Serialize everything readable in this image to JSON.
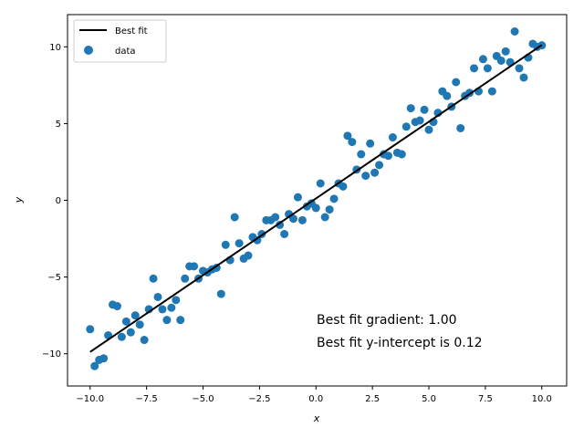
{
  "chart_data": {
    "type": "scatter",
    "title": "",
    "xlabel": "x",
    "ylabel": "y",
    "xlim": [
      -11,
      11.1
    ],
    "ylim": [
      -12.1,
      12.1
    ],
    "xticks": [
      -10,
      -7.5,
      -5,
      -2.5,
      0,
      2.5,
      5,
      7.5,
      10
    ],
    "xtick_labels": [
      "−10.0",
      "−7.5",
      "−5.0",
      "−2.5",
      "0.0",
      "2.5",
      "5.0",
      "7.5",
      "10.0"
    ],
    "yticks": [
      -10,
      -5,
      0,
      5,
      10
    ],
    "ytick_labels": [
      "−10",
      "−5",
      "0",
      "5",
      "10"
    ],
    "grid": false,
    "legend_position": "upper-left",
    "legend": [
      {
        "label": "Best fit",
        "kind": "line"
      },
      {
        "label": "data",
        "kind": "marker"
      }
    ],
    "fit_line": {
      "name": "Best fit",
      "gradient": 1.0,
      "intercept": 0.12,
      "x_range": [
        -10,
        10
      ],
      "color": "#000000"
    },
    "marker_color": "#1f77b4",
    "annotations": [
      "Best fit gradient: 1.00",
      "Best fit y-intercept is 0.12"
    ],
    "series": [
      {
        "name": "data",
        "x": [
          -10.0,
          -9.8,
          -9.6,
          -9.4,
          -9.2,
          -9.0,
          -8.8,
          -8.6,
          -8.4,
          -8.2,
          -8.0,
          -7.8,
          -7.6,
          -7.4,
          -7.2,
          -7.0,
          -6.8,
          -6.6,
          -6.4,
          -6.2,
          -6.0,
          -5.8,
          -5.6,
          -5.4,
          -5.2,
          -5.0,
          -4.8,
          -4.6,
          -4.4,
          -4.2,
          -4.0,
          -3.8,
          -3.6,
          -3.4,
          -3.2,
          -3.0,
          -2.8,
          -2.6,
          -2.4,
          -2.2,
          -2.0,
          -1.8,
          -1.6,
          -1.4,
          -1.2,
          -1.0,
          -0.8,
          -0.6,
          -0.4,
          -0.2,
          0.0,
          0.2,
          0.4,
          0.6,
          0.8,
          1.0,
          1.2,
          1.4,
          1.6,
          1.8,
          2.0,
          2.2,
          2.4,
          2.6,
          2.8,
          3.0,
          3.2,
          3.4,
          3.6,
          3.8,
          4.0,
          4.2,
          4.4,
          4.6,
          4.8,
          5.0,
          5.2,
          5.4,
          5.6,
          5.8,
          6.0,
          6.2,
          6.4,
          6.6,
          6.8,
          7.0,
          7.2,
          7.4,
          7.6,
          7.8,
          8.0,
          8.2,
          8.4,
          8.6,
          8.8,
          9.0,
          9.2,
          9.4,
          9.6,
          9.8,
          10.0
        ],
        "y": [
          -8.4,
          -10.8,
          -10.4,
          -10.3,
          -8.8,
          -6.8,
          -6.9,
          -8.9,
          -7.9,
          -8.6,
          -7.5,
          -8.1,
          -9.1,
          -7.1,
          -5.1,
          -6.3,
          -7.1,
          -7.8,
          -7.0,
          -6.5,
          -7.8,
          -5.1,
          -4.3,
          -4.3,
          -5.1,
          -4.6,
          -4.7,
          -4.5,
          -4.4,
          -6.1,
          -2.9,
          -3.9,
          -1.1,
          -2.8,
          -3.8,
          -3.6,
          -2.4,
          -2.6,
          -2.2,
          -1.3,
          -1.3,
          -1.1,
          -1.6,
          -2.2,
          -0.9,
          -1.2,
          0.2,
          -1.3,
          -0.4,
          -0.2,
          -0.5,
          1.1,
          -1.1,
          -0.6,
          0.1,
          1.1,
          0.9,
          4.2,
          3.8,
          2.0,
          3.0,
          1.6,
          3.7,
          1.8,
          2.3,
          3.0,
          2.9,
          4.1,
          3.1,
          3.0,
          4.8,
          6.0,
          5.1,
          5.2,
          5.9,
          4.6,
          5.1,
          5.7,
          7.1,
          6.8,
          6.1,
          7.7,
          4.7,
          6.8,
          7.0,
          8.6,
          7.1,
          9.2,
          8.6,
          7.1,
          9.4,
          9.1,
          9.7,
          9.0,
          11.0,
          8.6,
          8.0,
          9.3,
          10.2,
          10.0,
          10.1
        ]
      }
    ]
  }
}
